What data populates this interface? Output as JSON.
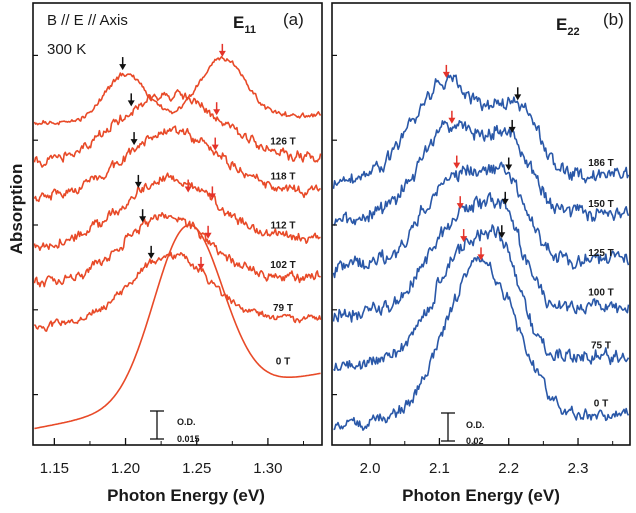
{
  "figure": {
    "ylabel": "Absorption"
  },
  "chart_data": [
    {
      "type": "line",
      "panel": "(a)",
      "transition": "E",
      "transition_sub": "11",
      "annotation_lines": [
        "B // E // Axis",
        "300 K"
      ],
      "xlabel": "Photon Energy (eV)",
      "ylabel": "Absorption",
      "xlim": [
        1.135,
        1.338
      ],
      "xticks": [
        "1.15",
        "1.20",
        "1.25",
        "1.30"
      ],
      "xtick_values": [
        1.15,
        1.2,
        1.25,
        1.3
      ],
      "ylim": [
        0,
        1
      ],
      "color": "#e84a28",
      "scale_bar": {
        "label": "O.D.",
        "value": "0.015"
      },
      "series": [
        {
          "name": "0 T",
          "baseline": 0.15,
          "peaks": [
            {
              "c": 1.244,
              "a": 0.41,
              "w": 0.024
            }
          ],
          "noise": 0.0,
          "red_arrow": 1.244,
          "black_arrow": null
        },
        {
          "name": "79 T",
          "baseline": 0.26,
          "peaks": [
            {
              "c": 1.231,
              "a": 0.16,
              "w": 0.028
            }
          ],
          "noise": 0.006,
          "red_arrow": 1.253,
          "black_arrow": 1.218
        },
        {
          "name": "102 T",
          "baseline": 0.36,
          "peaks": [
            {
              "c": 1.228,
              "a": 0.15,
              "w": 0.03
            }
          ],
          "noise": 0.008,
          "red_arrow": 1.258,
          "black_arrow": 1.212
        },
        {
          "name": "112 T",
          "baseline": 0.45,
          "peaks": [
            {
              "c": 1.23,
              "a": 0.15,
              "w": 0.032
            }
          ],
          "noise": 0.008,
          "red_arrow": 1.261,
          "black_arrow": 1.209
        },
        {
          "name": "118 T",
          "baseline": 0.56,
          "peaks": [
            {
              "c": 1.232,
              "a": 0.15,
              "w": 0.034
            }
          ],
          "noise": 0.008,
          "red_arrow": 1.263,
          "black_arrow": 1.206
        },
        {
          "name": "126 T",
          "baseline": 0.64,
          "peaks": [
            {
              "c": 1.23,
              "a": 0.16,
              "w": 0.036
            }
          ],
          "noise": 0.008,
          "red_arrow": 1.264,
          "black_arrow": 1.204
        },
        {
          "name": "",
          "baseline": 0.74,
          "peaks": [
            {
              "c": 1.2,
              "a": 0.11,
              "w": 0.014
            },
            {
              "c": 1.268,
              "a": 0.14,
              "w": 0.016
            }
          ],
          "noise": 0.004,
          "red_arrow": 1.268,
          "black_arrow": 1.198
        }
      ]
    },
    {
      "type": "line",
      "panel": "(b)",
      "transition": "E",
      "transition_sub": "22",
      "xlabel": "Photon Energy (eV)",
      "xlim": [
        1.945,
        2.375
      ],
      "xticks": [
        "2.0",
        "2.1",
        "2.2",
        "2.3"
      ],
      "xtick_values": [
        2.0,
        2.1,
        2.2,
        2.3
      ],
      "ylim": [
        0,
        1
      ],
      "color": "#2a58a8",
      "scale_bar": {
        "label": "O.D.",
        "value": "0.02"
      },
      "series": [
        {
          "name": "0 T",
          "baseline": 0.03,
          "peaks": [
            {
              "c": 2.16,
              "a": 0.37,
              "w": 0.052
            }
          ],
          "noise": 0.01,
          "red_arrow": 2.16,
          "black_arrow": null
        },
        {
          "name": "75 T",
          "baseline": 0.17,
          "peaks": [
            {
              "c": 2.135,
              "a": 0.25,
              "w": 0.046
            },
            {
              "c": 2.19,
              "a": 0.16,
              "w": 0.028
            }
          ],
          "noise": 0.012,
          "red_arrow": 2.135,
          "black_arrow": 2.19
        },
        {
          "name": "100 T",
          "baseline": 0.29,
          "peaks": [
            {
              "c": 2.13,
              "a": 0.22,
              "w": 0.046
            },
            {
              "c": 2.195,
              "a": 0.16,
              "w": 0.028
            }
          ],
          "noise": 0.012,
          "red_arrow": 2.13,
          "black_arrow": 2.195
        },
        {
          "name": "125 T",
          "baseline": 0.4,
          "peaks": [
            {
              "c": 2.125,
              "a": 0.21,
              "w": 0.048
            },
            {
              "c": 2.2,
              "a": 0.15,
              "w": 0.03
            }
          ],
          "noise": 0.012,
          "red_arrow": 2.125,
          "black_arrow": 2.2
        },
        {
          "name": "150 T",
          "baseline": 0.51,
          "peaks": [
            {
              "c": 2.118,
              "a": 0.21,
              "w": 0.048
            },
            {
              "c": 2.205,
              "a": 0.15,
              "w": 0.03
            }
          ],
          "noise": 0.012,
          "red_arrow": 2.118,
          "black_arrow": 2.205
        },
        {
          "name": "186 T",
          "baseline": 0.6,
          "peaks": [
            {
              "c": 2.11,
              "a": 0.23,
              "w": 0.05
            },
            {
              "c": 2.213,
              "a": 0.15,
              "w": 0.03
            }
          ],
          "noise": 0.012,
          "red_arrow": 2.11,
          "black_arrow": 2.213
        }
      ]
    }
  ]
}
